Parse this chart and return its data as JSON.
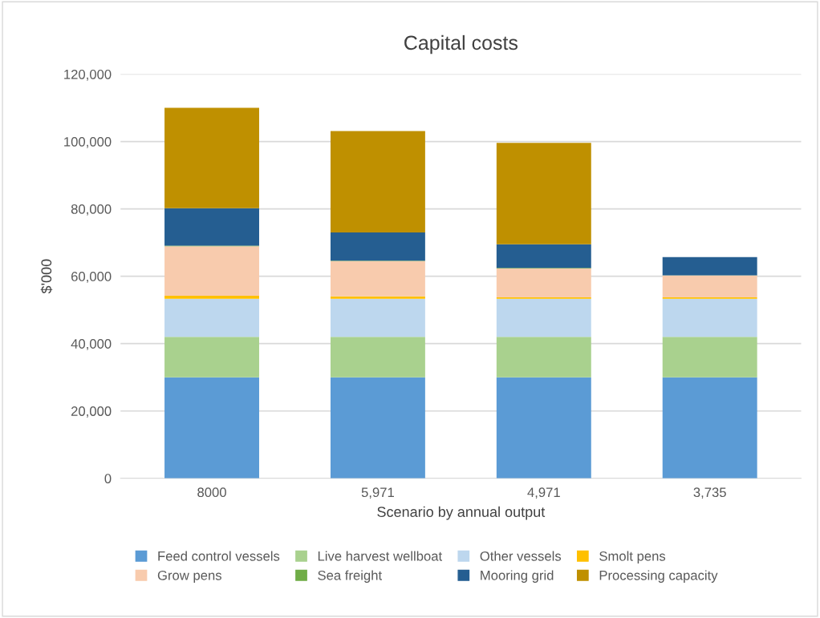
{
  "chart_data": {
    "type": "bar",
    "title": "Capital costs",
    "xlabel": "Scenario by annual output",
    "ylabel": "$'000",
    "categories": [
      "8000",
      "5,971",
      "4,971",
      "3,735"
    ],
    "stacked": true,
    "series": [
      {
        "name": "Feed control vessels",
        "color": "#5b9bd5",
        "values": [
          30000,
          30000,
          30000,
          30000
        ]
      },
      {
        "name": "Live harvest wellboat",
        "color": "#a9d18e",
        "values": [
          12000,
          12000,
          12000,
          12000
        ]
      },
      {
        "name": "Other vessels",
        "color": "#bdd7ee",
        "values": [
          11300,
          11300,
          11300,
          11300
        ]
      },
      {
        "name": "Smolt pens",
        "color": "#ffc000",
        "values": [
          900,
          700,
          400,
          400
        ]
      },
      {
        "name": "Grow pens",
        "color": "#f8cbad",
        "values": [
          14700,
          10500,
          8600,
          6500
        ]
      },
      {
        "name": "Sea freight",
        "color": "#70ad47",
        "values": [
          200,
          100,
          200,
          100
        ]
      },
      {
        "name": "Mooring grid",
        "color": "#255e91",
        "values": [
          11100,
          8400,
          7000,
          5400
        ]
      },
      {
        "name": "Processing capacity",
        "color": "#bf9000",
        "values": [
          29800,
          30100,
          30100,
          0
        ]
      }
    ],
    "ylim": [
      0,
      120000
    ],
    "yticks": [
      {
        "value": 0,
        "label": "0"
      },
      {
        "value": 20000,
        "label": "20,000"
      },
      {
        "value": 40000,
        "label": "40,000"
      },
      {
        "value": 60000,
        "label": "60,000"
      },
      {
        "value": 80000,
        "label": "80,000"
      },
      {
        "value": 100000,
        "label": "100,000"
      },
      {
        "value": 120000,
        "label": "120,000"
      }
    ],
    "grid": "y",
    "legend": "bottom"
  }
}
